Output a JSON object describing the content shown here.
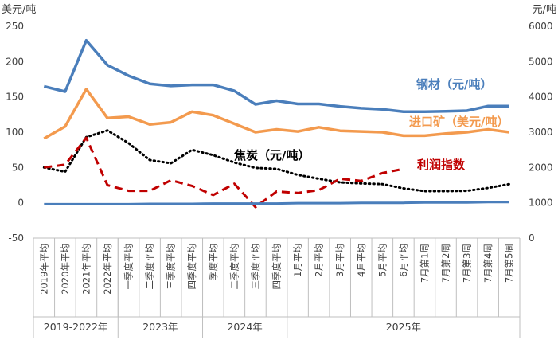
{
  "chart_data": {
    "type": "line",
    "left_axis": {
      "unit": "美元/吨",
      "ticks": [
        -50,
        0,
        50,
        100,
        150,
        200,
        250
      ],
      "ylim": [
        -50,
        250
      ]
    },
    "right_axis": {
      "unit": "元/吨",
      "ticks": [
        0,
        1000,
        2000,
        3000,
        4000,
        5000,
        6000
      ],
      "ylim": [
        0,
        6000
      ]
    },
    "categories": [
      "2019年平均",
      "2020年平均",
      "2021年平均",
      "2022年平均",
      "一季度平均",
      "二季度平均",
      "三季度平均",
      "四季度平均",
      "一季度平均",
      "二季度平均",
      "三季度平均",
      "四季度平均",
      "1月平均",
      "2月平均",
      "3月平均",
      "4月平均",
      "5月平均",
      "6月平均",
      "7月第1周",
      "7月第2周",
      "7月第3周",
      "7月第4周",
      "7月第5周"
    ],
    "groups": [
      {
        "label": "2019-2022年",
        "count": 4
      },
      {
        "label": "2023年",
        "count": 4
      },
      {
        "label": "2024年",
        "count": 4
      },
      {
        "label": "2025年",
        "count": 11
      }
    ],
    "series": [
      {
        "name": "钢材（元/吨）",
        "axis": "right",
        "color": "#4a7ebb",
        "style": "solid",
        "values": [
          4300,
          4150,
          5600,
          4900,
          4600,
          4370,
          4310,
          4340,
          4340,
          4170,
          3790,
          3890,
          3800,
          3800,
          3730,
          3680,
          3650,
          3580,
          3580,
          3590,
          3610,
          3740,
          3740
        ]
      },
      {
        "name": "进口矿（美元/吨）",
        "axis": "left",
        "color": "#f39a4e",
        "style": "solid",
        "values": [
          91,
          108,
          161,
          120,
          122,
          111,
          114,
          129,
          124,
          112,
          100,
          104,
          101,
          107,
          102,
          101,
          100,
          95,
          95,
          98,
          100,
          104,
          100
        ]
      },
      {
        "name": "焦炭（元/吨）",
        "axis": "right",
        "color": "#000000",
        "style": "dotted",
        "values": [
          2000,
          1880,
          2860,
          3050,
          2690,
          2210,
          2120,
          2500,
          2350,
          2140,
          1990,
          1960,
          1790,
          1680,
          1580,
          1550,
          1530,
          1410,
          1330,
          1330,
          1340,
          1420,
          1530
        ]
      },
      {
        "name": "利润指数",
        "axis": "left",
        "color": "#c00000",
        "style": "dashed",
        "values": [
          50,
          54,
          92,
          25,
          17,
          17,
          32,
          24,
          11,
          27,
          -6,
          16,
          14,
          18,
          34,
          31,
          42,
          48,
          null,
          null,
          null,
          null,
          null
        ]
      },
      {
        "name": "",
        "axis": "left",
        "color": "#4a7ebb",
        "style": "solid",
        "width": 3,
        "values": [
          -2,
          -2,
          -2,
          -2,
          -2,
          -1.5,
          -1.5,
          -1.5,
          -1,
          -1,
          -1,
          -1,
          -0.5,
          -0.5,
          -0.5,
          0,
          0,
          0,
          0.5,
          0.5,
          0.5,
          1,
          1
        ]
      }
    ],
    "series_labels": [
      {
        "text": "钢材（元/吨）",
        "color": "#4a7ebb"
      },
      {
        "text": "进口矿（美元/吨）",
        "color": "#f39a4e"
      },
      {
        "text": "焦炭（元/吨）",
        "color": "#000000"
      },
      {
        "text": "利润指数",
        "color": "#c00000"
      }
    ]
  }
}
